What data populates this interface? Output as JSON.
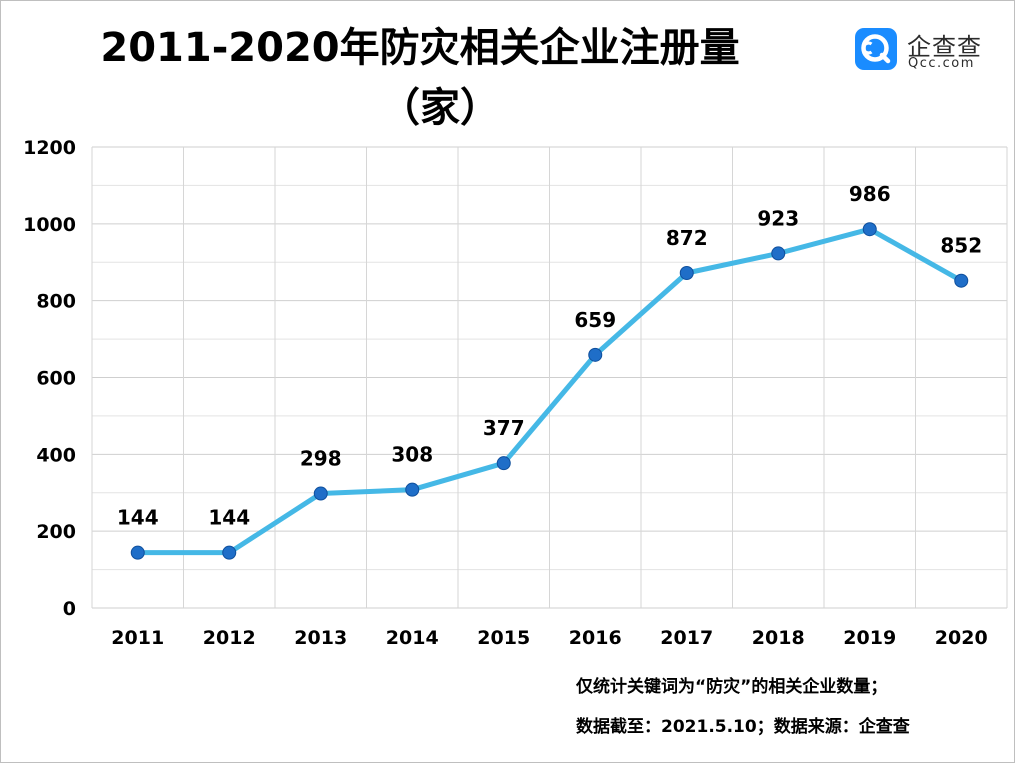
{
  "header": {
    "title_line1": "2011-2020年防灾相关企业注册量",
    "title_line2": "（家）"
  },
  "logo": {
    "name_cn": "企查查",
    "name_en": "Qcc.com",
    "color": "#1a8cff",
    "icon": "qcc-logo-icon"
  },
  "footnote": {
    "line1": "仅统计关键词为“防灾”的相关企业数量；",
    "line2": "数据截至：2021.5.10；数据来源：企查查"
  },
  "chart_data": {
    "type": "line",
    "title": "2011-2020年防灾相关企业注册量（家）",
    "xlabel": "",
    "ylabel": "",
    "categories": [
      "2011",
      "2012",
      "2013",
      "2014",
      "2015",
      "2016",
      "2017",
      "2018",
      "2019",
      "2020"
    ],
    "values": [
      144,
      144,
      298,
      308,
      377,
      659,
      872,
      923,
      986,
      852
    ],
    "ylim": [
      0,
      1200
    ],
    "yticks": [
      "0",
      "200",
      "400",
      "600",
      "800",
      "1000",
      "1200"
    ],
    "grid": true,
    "line_color": "#45b8e6",
    "marker_color": "#1f6ec8",
    "legend": "none"
  }
}
